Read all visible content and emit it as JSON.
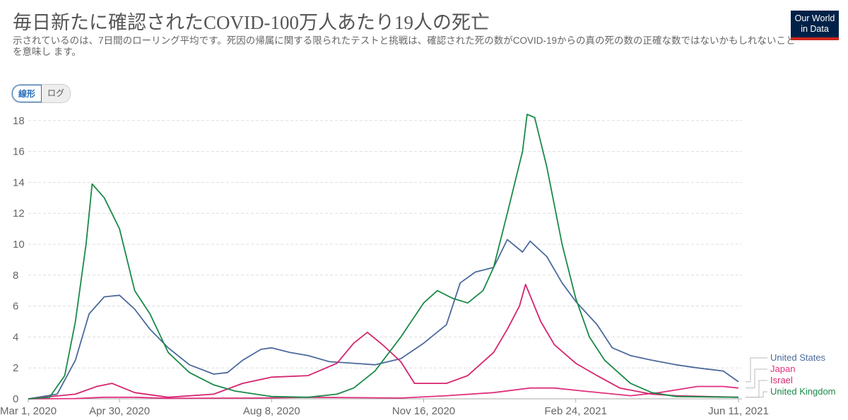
{
  "header": {
    "title": "毎日新たに確認されたCOVID-100万人あたり19人の死亡",
    "subtitle": "示されているのは、7日間のローリング平均です。死因の帰属に関する限られたテストと挑戦は、確認された死の数がCOVID-19からの真の死の数の正確な数ではないかもしれないことを意味し ます。",
    "logo": "Our World in Data"
  },
  "toggle": {
    "linear": "線形",
    "log": "ログ",
    "selected": "linear"
  },
  "chart_data": {
    "type": "line",
    "title": "毎日新たに確認されたCOVID-100万人あたり19人の死亡",
    "xlabel": "",
    "ylabel": "",
    "xlim": [
      "2020-03-01",
      "2021-06-11"
    ],
    "ylim": [
      0,
      18.5
    ],
    "grid": "horizontal dashed",
    "legend": "right",
    "xticks": [
      "Mar 1, 2020",
      "Apr 30, 2020",
      "Aug 8, 2020",
      "Nov 16, 2020",
      "Feb 24, 2021",
      "Jun 11, 2021"
    ],
    "yticks": [
      0,
      2,
      4,
      6,
      8,
      10,
      12,
      14,
      16,
      18
    ],
    "series": [
      {
        "name": "United States",
        "color": "#4c6a9c",
        "points": [
          [
            "2020-03-01",
            0
          ],
          [
            "2020-03-20",
            0.3
          ],
          [
            "2020-04-01",
            2.5
          ],
          [
            "2020-04-10",
            5.5
          ],
          [
            "2020-04-20",
            6.6
          ],
          [
            "2020-04-30",
            6.7
          ],
          [
            "2020-05-10",
            5.8
          ],
          [
            "2020-05-20",
            4.5
          ],
          [
            "2020-06-01",
            3.3
          ],
          [
            "2020-06-15",
            2.2
          ],
          [
            "2020-07-01",
            1.6
          ],
          [
            "2020-07-10",
            1.7
          ],
          [
            "2020-07-20",
            2.5
          ],
          [
            "2020-08-01",
            3.2
          ],
          [
            "2020-08-08",
            3.3
          ],
          [
            "2020-08-20",
            3.0
          ],
          [
            "2020-09-01",
            2.8
          ],
          [
            "2020-09-15",
            2.4
          ],
          [
            "2020-10-01",
            2.3
          ],
          [
            "2020-10-15",
            2.2
          ],
          [
            "2020-11-01",
            2.6
          ],
          [
            "2020-11-16",
            3.6
          ],
          [
            "2020-12-01",
            4.8
          ],
          [
            "2020-12-10",
            7.5
          ],
          [
            "2020-12-20",
            8.2
          ],
          [
            "2021-01-01",
            8.5
          ],
          [
            "2021-01-10",
            10.3
          ],
          [
            "2021-01-20",
            9.5
          ],
          [
            "2021-01-25",
            10.2
          ],
          [
            "2021-02-05",
            9.2
          ],
          [
            "2021-02-15",
            7.5
          ],
          [
            "2021-02-24",
            6.3
          ],
          [
            "2021-03-10",
            4.8
          ],
          [
            "2021-03-20",
            3.3
          ],
          [
            "2021-04-01",
            2.8
          ],
          [
            "2021-04-15",
            2.5
          ],
          [
            "2021-05-01",
            2.2
          ],
          [
            "2021-05-15",
            2.0
          ],
          [
            "2021-06-01",
            1.8
          ],
          [
            "2021-06-11",
            1.1
          ]
        ]
      },
      {
        "name": "Japan",
        "color": "#e0317e",
        "points": [
          [
            "2020-03-01",
            0
          ],
          [
            "2020-04-01",
            0.02
          ],
          [
            "2020-04-20",
            0.1
          ],
          [
            "2020-05-10",
            0.1
          ],
          [
            "2020-06-01",
            0.03
          ],
          [
            "2020-08-01",
            0.05
          ],
          [
            "2020-09-01",
            0.1
          ],
          [
            "2020-11-01",
            0.05
          ],
          [
            "2020-12-01",
            0.2
          ],
          [
            "2021-01-01",
            0.4
          ],
          [
            "2021-01-25",
            0.7
          ],
          [
            "2021-02-10",
            0.7
          ],
          [
            "2021-03-01",
            0.5
          ],
          [
            "2021-04-01",
            0.2
          ],
          [
            "2021-04-20",
            0.4
          ],
          [
            "2021-05-15",
            0.8
          ],
          [
            "2021-06-01",
            0.8
          ],
          [
            "2021-06-11",
            0.7
          ]
        ]
      },
      {
        "name": "Israel",
        "color": "#d6246e",
        "points": [
          [
            "2020-03-01",
            0
          ],
          [
            "2020-04-01",
            0.3
          ],
          [
            "2020-04-15",
            0.8
          ],
          [
            "2020-04-25",
            1.0
          ],
          [
            "2020-05-10",
            0.4
          ],
          [
            "2020-06-01",
            0.1
          ],
          [
            "2020-07-01",
            0.3
          ],
          [
            "2020-07-20",
            1.0
          ],
          [
            "2020-08-08",
            1.4
          ],
          [
            "2020-09-01",
            1.5
          ],
          [
            "2020-09-20",
            2.3
          ],
          [
            "2020-10-01",
            3.6
          ],
          [
            "2020-10-10",
            4.3
          ],
          [
            "2020-10-20",
            3.5
          ],
          [
            "2020-11-01",
            2.4
          ],
          [
            "2020-11-10",
            1.0
          ],
          [
            "2020-12-01",
            1.0
          ],
          [
            "2020-12-15",
            1.5
          ],
          [
            "2021-01-01",
            3.0
          ],
          [
            "2021-01-10",
            4.5
          ],
          [
            "2021-01-18",
            6.0
          ],
          [
            "2021-01-22",
            7.4
          ],
          [
            "2021-02-01",
            5.0
          ],
          [
            "2021-02-10",
            3.5
          ],
          [
            "2021-02-24",
            2.3
          ],
          [
            "2021-03-10",
            1.5
          ],
          [
            "2021-03-25",
            0.7
          ],
          [
            "2021-04-15",
            0.3
          ],
          [
            "2021-05-01",
            0.2
          ],
          [
            "2021-06-11",
            0.1
          ]
        ]
      },
      {
        "name": "United Kingdom",
        "color": "#1a8a48",
        "points": [
          [
            "2020-03-01",
            0
          ],
          [
            "2020-03-15",
            0.1
          ],
          [
            "2020-03-25",
            1.5
          ],
          [
            "2020-04-01",
            5
          ],
          [
            "2020-04-08",
            10
          ],
          [
            "2020-04-12",
            13.9
          ],
          [
            "2020-04-20",
            13
          ],
          [
            "2020-04-30",
            11
          ],
          [
            "2020-05-10",
            7
          ],
          [
            "2020-05-20",
            5.5
          ],
          [
            "2020-06-01",
            3
          ],
          [
            "2020-06-15",
            1.7
          ],
          [
            "2020-07-01",
            0.9
          ],
          [
            "2020-07-15",
            0.5
          ],
          [
            "2020-08-08",
            0.15
          ],
          [
            "2020-09-01",
            0.1
          ],
          [
            "2020-09-20",
            0.3
          ],
          [
            "2020-10-01",
            0.7
          ],
          [
            "2020-10-15",
            1.8
          ],
          [
            "2020-11-01",
            4
          ],
          [
            "2020-11-16",
            6.2
          ],
          [
            "2020-11-25",
            7
          ],
          [
            "2020-12-05",
            6.5
          ],
          [
            "2020-12-15",
            6.2
          ],
          [
            "2020-12-25",
            7
          ],
          [
            "2021-01-01",
            8.5
          ],
          [
            "2021-01-10",
            12
          ],
          [
            "2021-01-20",
            16
          ],
          [
            "2021-01-23",
            18.4
          ],
          [
            "2021-01-28",
            18.2
          ],
          [
            "2021-02-05",
            15
          ],
          [
            "2021-02-15",
            10
          ],
          [
            "2021-02-24",
            6.5
          ],
          [
            "2021-03-05",
            4
          ],
          [
            "2021-03-15",
            2.5
          ],
          [
            "2021-04-01",
            1.0
          ],
          [
            "2021-04-15",
            0.4
          ],
          [
            "2021-05-01",
            0.15
          ],
          [
            "2021-06-11",
            0.1
          ]
        ]
      }
    ]
  }
}
